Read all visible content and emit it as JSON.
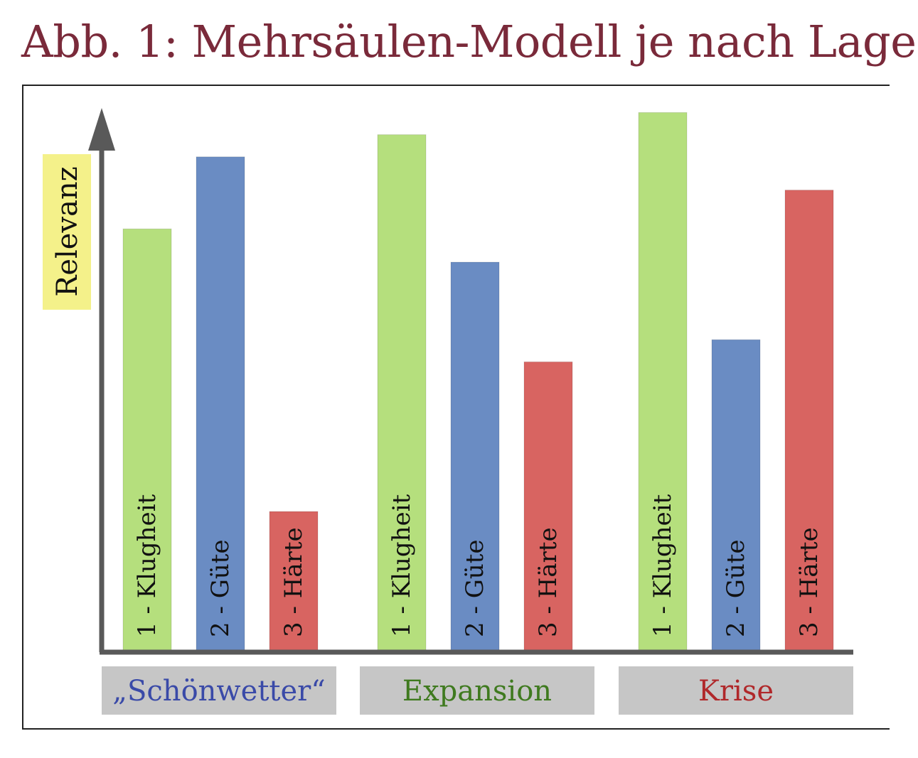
{
  "title": "Abb. 1: Mehrsäulen-Modell je nach Lage",
  "chart_data": {
    "type": "bar",
    "title": "Abb. 1: Mehrsäulen-Modell je nach Lage",
    "ylabel": "Relevanz",
    "xlabel": "",
    "ylim": [
      0,
      100
    ],
    "categories": [
      "„Schönwetter“",
      "Expansion",
      "Krise"
    ],
    "category_colors": [
      "#3a4aa8",
      "#3f7a1f",
      "#b0282a"
    ],
    "series": [
      {
        "name": "1 - Klugheit",
        "color": "#b5df7d",
        "values": [
          76,
          93,
          97
        ]
      },
      {
        "name": "2 - Güte",
        "color": "#6a8cc3",
        "values": [
          89,
          70,
          56
        ]
      },
      {
        "name": "3 - Härte",
        "color": "#d86461",
        "values": [
          25,
          52,
          83
        ]
      }
    ]
  }
}
